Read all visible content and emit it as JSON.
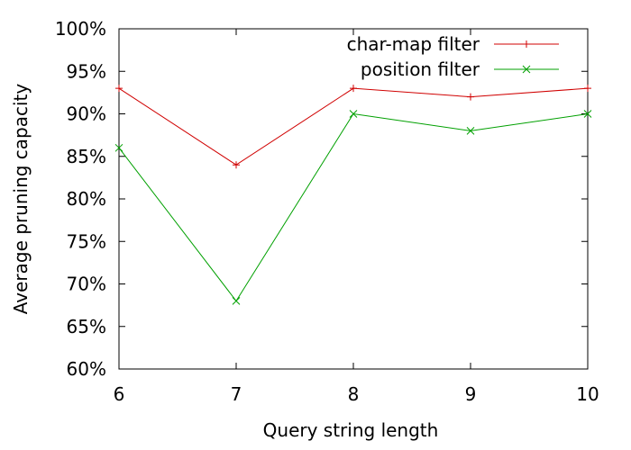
{
  "chart_data": {
    "type": "line",
    "title": "",
    "xlabel": "Query string length",
    "ylabel": "Average pruning capacity",
    "x": [
      6,
      7,
      8,
      9,
      10
    ],
    "xlim": [
      6,
      10
    ],
    "ylim": [
      60,
      100
    ],
    "x_ticks": [
      "6",
      "7",
      "8",
      "9",
      "10"
    ],
    "y_tick_values": [
      60,
      65,
      70,
      75,
      80,
      85,
      90,
      95,
      100
    ],
    "y_ticks": [
      "60%",
      "65%",
      "70%",
      "75%",
      "80%",
      "85%",
      "90%",
      "95%",
      "100%"
    ],
    "grid": false,
    "legend_position": "top-right",
    "series": [
      {
        "name": "char-map filter",
        "values": [
          93,
          84,
          93,
          92,
          93
        ],
        "color": "#d00000",
        "marker": "plus"
      },
      {
        "name": "position filter",
        "values": [
          86,
          68,
          90,
          88,
          90
        ],
        "color": "#00a000",
        "marker": "cross"
      }
    ]
  }
}
